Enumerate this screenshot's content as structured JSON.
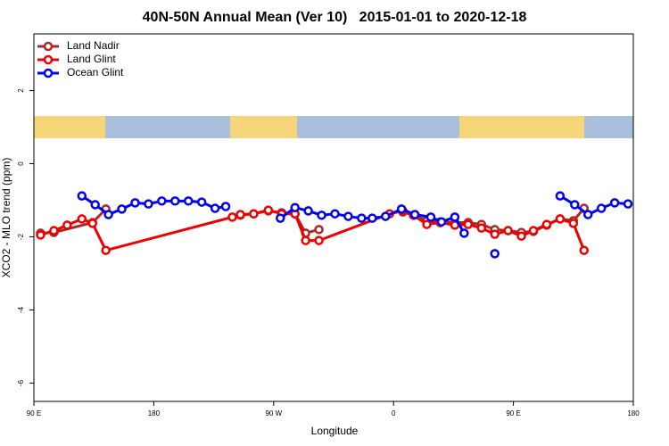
{
  "chart_data": {
    "type": "line",
    "title": "40N-50N Annual Mean (Ver 10)   2015-01-01 to 2020-12-18",
    "x_label": "Longitude",
    "y_label": "XCO2 - MLO trend (ppm)",
    "legend": "top-left",
    "xlim": [
      90,
      540
    ],
    "xticks": [
      {
        "value": 90,
        "label": "90 E"
      },
      {
        "value": 180,
        "label": "180"
      },
      {
        "value": 270,
        "label": "90 W"
      },
      {
        "value": 360,
        "label": "0"
      },
      {
        "value": 450,
        "label": "90 E"
      },
      {
        "value": 540,
        "label": "180"
      }
    ],
    "ylim": [
      -6.5,
      3.55
    ],
    "yticks": [
      -6,
      -4,
      -2,
      0,
      2
    ],
    "series": [
      {
        "name": "Land Nadir",
        "color": "#a52a2a",
        "x": [
          95,
          105,
          134,
          144,
          239,
          245,
          255,
          266,
          276,
          286,
          294,
          304,
          357,
          367,
          375,
          385,
          395,
          406,
          416,
          426,
          436,
          446,
          456,
          465,
          475,
          485,
          495,
          503
        ],
        "values": [
          -1.9,
          -1.88,
          -1.61,
          -1.24,
          null,
          -1.41,
          -1.37,
          -1.29,
          -1.34,
          -1.37,
          -1.9,
          -1.8,
          null,
          -1.32,
          -1.41,
          -1.56,
          -1.59,
          -1.61,
          -1.61,
          -1.66,
          -1.8,
          -1.83,
          -1.88,
          -1.85,
          -1.68,
          -1.51,
          -1.56,
          -1.22
        ]
      },
      {
        "name": "Land Glint",
        "color": "#ee0000",
        "x": [
          95,
          105,
          115,
          126,
          134,
          144,
          239,
          245,
          255,
          266,
          276,
          286,
          294,
          304,
          357,
          367,
          375,
          385,
          395,
          406,
          416,
          426,
          436,
          446,
          456,
          465,
          475,
          485,
          495,
          503
        ],
        "values": [
          -1.95,
          -1.83,
          -1.68,
          -1.51,
          -1.63,
          -2.37,
          -1.46,
          -1.39,
          -1.37,
          -1.27,
          -1.37,
          -1.37,
          -2.1,
          -2.1,
          -1.37,
          -1.29,
          -1.41,
          -1.66,
          -1.61,
          -1.68,
          -1.66,
          -1.76,
          -1.93,
          -1.83,
          -1.98,
          -1.83,
          -1.66,
          -1.51,
          -1.63,
          -2.37
        ]
      },
      {
        "name": "Ocean Glint",
        "color": "#0000ee",
        "x": [
          126,
          136,
          146,
          156,
          166,
          176,
          186,
          196,
          206,
          216,
          226,
          234,
          255,
          275,
          286,
          296,
          306,
          316,
          326,
          336,
          344,
          354,
          366,
          376,
          388,
          396,
          406,
          413,
          425,
          436,
          460,
          485,
          496,
          506,
          516,
          526,
          536
        ],
        "values": [
          -0.88,
          -1.12,
          -1.39,
          -1.24,
          -1.07,
          -1.1,
          -1.02,
          -1.02,
          -1.02,
          -1.05,
          -1.22,
          -1.17,
          null,
          -1.49,
          -1.2,
          -1.29,
          -1.41,
          -1.37,
          -1.44,
          -1.49,
          -1.49,
          -1.44,
          -1.24,
          -1.39,
          -1.46,
          -1.59,
          -1.46,
          -1.9,
          null,
          -2.46,
          null,
          -0.88,
          -1.12,
          -1.39,
          -1.22,
          -1.07,
          -1.1
        ]
      }
    ]
  }
}
